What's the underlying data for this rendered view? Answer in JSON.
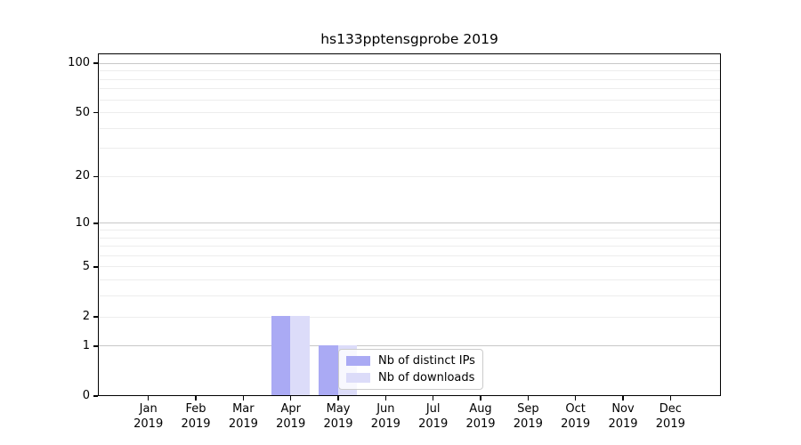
{
  "chart_data": {
    "type": "bar",
    "title": "hs133pptensgprobe 2019",
    "categories": [
      "Jan",
      "Feb",
      "Mar",
      "Apr",
      "May",
      "Jun",
      "Jul",
      "Aug",
      "Sep",
      "Oct",
      "Nov",
      "Dec"
    ],
    "category_year": "2019",
    "series": [
      {
        "name": "Nb of distinct IPs",
        "color": "#aaaaf4",
        "values": [
          0,
          0,
          0,
          2,
          1,
          0,
          0,
          0,
          0,
          0,
          0,
          0
        ]
      },
      {
        "name": "Nb of downloads",
        "color": "#dcdcf9",
        "values": [
          0,
          0,
          0,
          2,
          1,
          0,
          0,
          0,
          0,
          0,
          0,
          0
        ]
      }
    ],
    "y_axis": {
      "scale": "log10(1+v)",
      "ylim": [
        0,
        115
      ],
      "tick_values": [
        0,
        1,
        2,
        5,
        10,
        20,
        50,
        100
      ],
      "major_grid_values": [
        1,
        10,
        100
      ],
      "minor_grid_values": [
        2,
        3,
        4,
        5,
        6,
        7,
        8,
        9,
        20,
        30,
        40,
        50,
        60,
        70,
        80,
        90
      ]
    },
    "legend": {
      "position": "lower-center",
      "entries": [
        "Nb of distinct IPs",
        "Nb of downloads"
      ]
    },
    "colors": {
      "major_grid": "#c8c8c8",
      "minor_grid": "#ededed",
      "axis": "#000000",
      "background": "#ffffff"
    }
  }
}
